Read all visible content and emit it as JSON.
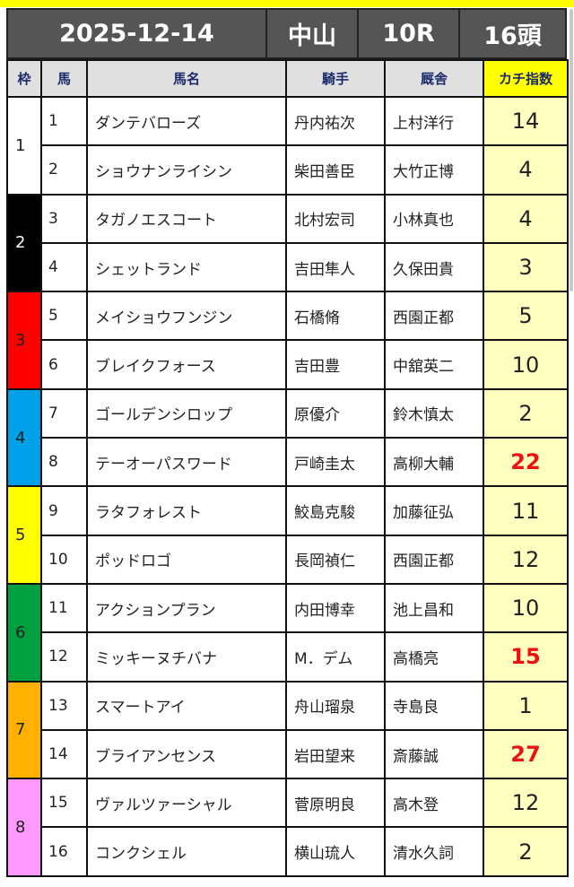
{
  "header": {
    "date": "2025-12-14",
    "venue": "中山",
    "race": "10R",
    "count": "16頭"
  },
  "columns": {
    "waku": "枠",
    "umaban": "馬",
    "name": "馬名",
    "jockey": "騎手",
    "trainer": "厩舎",
    "index": "カチ指数"
  },
  "waku_colors": {
    "1": "#ffffff",
    "2": "#000000",
    "3": "#ff0000",
    "4": "#00a0e9",
    "5": "#ffff00",
    "6": "#00a040",
    "7": "#ffb000",
    "8": "#ff99ff"
  },
  "waku_text_colors": {
    "1": "#222222",
    "2": "#ffffff",
    "3": "#222222",
    "4": "#222222",
    "5": "#222222",
    "6": "#222222",
    "7": "#222222",
    "8": "#222222"
  },
  "highlight_color": "#ee1111",
  "rows": [
    {
      "waku": "1",
      "umaban": "1",
      "name": "ダンテバローズ",
      "jockey": "丹内祐次",
      "trainer": "上村洋行",
      "index": "14",
      "hot": false
    },
    {
      "waku": "1",
      "umaban": "2",
      "name": "ショウナンライシン",
      "jockey": "柴田善臣",
      "trainer": "大竹正博",
      "index": "4",
      "hot": false
    },
    {
      "waku": "2",
      "umaban": "3",
      "name": "タガノエスコート",
      "jockey": "北村宏司",
      "trainer": "小林真也",
      "index": "4",
      "hot": false
    },
    {
      "waku": "2",
      "umaban": "4",
      "name": "シェットランド",
      "jockey": "吉田隼人",
      "trainer": "久保田貴",
      "index": "3",
      "hot": false
    },
    {
      "waku": "3",
      "umaban": "5",
      "name": "メイショウフンジン",
      "jockey": "石橋脩",
      "trainer": "西園正都",
      "index": "5",
      "hot": false
    },
    {
      "waku": "3",
      "umaban": "6",
      "name": "ブレイクフォース",
      "jockey": "吉田豊",
      "trainer": "中舘英二",
      "index": "10",
      "hot": false
    },
    {
      "waku": "4",
      "umaban": "7",
      "name": "ゴールデンシロップ",
      "jockey": "原優介",
      "trainer": "鈴木慎太",
      "index": "2",
      "hot": false
    },
    {
      "waku": "4",
      "umaban": "8",
      "name": "テーオーパスワード",
      "jockey": "戸崎圭太",
      "trainer": "高柳大輔",
      "index": "22",
      "hot": true
    },
    {
      "waku": "5",
      "umaban": "9",
      "name": "ラタフォレスト",
      "jockey": "鮫島克駿",
      "trainer": "加藤征弘",
      "index": "11",
      "hot": false
    },
    {
      "waku": "5",
      "umaban": "10",
      "name": "ポッドロゴ",
      "jockey": "長岡禎仁",
      "trainer": "西園正都",
      "index": "12",
      "hot": false
    },
    {
      "waku": "6",
      "umaban": "11",
      "name": "アクションプラン",
      "jockey": "内田博幸",
      "trainer": "池上昌和",
      "index": "10",
      "hot": false
    },
    {
      "waku": "6",
      "umaban": "12",
      "name": "ミッキーヌチバナ",
      "jockey": "M．デム",
      "trainer": "高橋亮",
      "index": "15",
      "hot": true
    },
    {
      "waku": "7",
      "umaban": "13",
      "name": "スマートアイ",
      "jockey": "舟山瑠泉",
      "trainer": "寺島良",
      "index": "1",
      "hot": false
    },
    {
      "waku": "7",
      "umaban": "14",
      "name": "ブライアンセンス",
      "jockey": "岩田望来",
      "trainer": "斎藤誠",
      "index": "27",
      "hot": true
    },
    {
      "waku": "8",
      "umaban": "15",
      "name": "ヴァルツァーシャル",
      "jockey": "菅原明良",
      "trainer": "高木登",
      "index": "12",
      "hot": false
    },
    {
      "waku": "8",
      "umaban": "16",
      "name": "コンクシェル",
      "jockey": "横山琉人",
      "trainer": "清水久詞",
      "index": "2",
      "hot": false
    }
  ]
}
